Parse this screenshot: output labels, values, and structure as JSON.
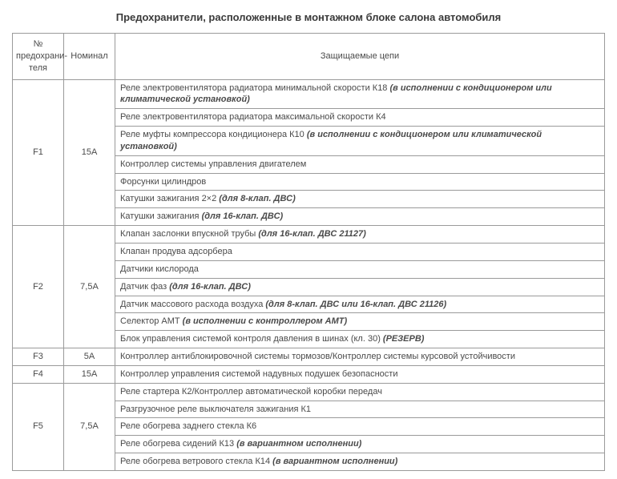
{
  "title": "Предохранители, расположенные в монтажном блоке салона автомобиля",
  "headers": {
    "col1": "№ предохрани­теля",
    "col2": "Номинал",
    "col3": "Защищаемые цепи"
  },
  "groups": [
    {
      "fuse": "F1",
      "nominal": "15А",
      "rows": [
        {
          "plain": "Реле электровентилятора радиатора минимальной скорости К18 ",
          "bold": "(в исполнении с кондиционером или климатической установкой)"
        },
        {
          "plain": "Реле электровентилятора радиатора максимальной скорости К4",
          "bold": ""
        },
        {
          "plain": "Реле муфты компрессора кондиционера К10 ",
          "bold": "(в исполнении с кондиционером или климатической установкой)"
        },
        {
          "plain": "Контроллер системы управления двигателем",
          "bold": ""
        },
        {
          "plain": "Форсунки цилиндров",
          "bold": ""
        },
        {
          "plain": "Катушки зажигания 2×2 ",
          "bold": "(для 8-клап. ДВС)"
        },
        {
          "plain": "Катушки зажигания ",
          "bold": "(для 16-клап. ДВС)"
        }
      ]
    },
    {
      "fuse": "F2",
      "nominal": "7,5А",
      "rows": [
        {
          "plain": "Клапан заслонки впускной трубы ",
          "bold": "(для 16-клап. ДВС 21127)"
        },
        {
          "plain": "Клапан продува адсорбера",
          "bold": ""
        },
        {
          "plain": "Датчики кислорода",
          "bold": ""
        },
        {
          "plain": "Датчик фаз ",
          "bold": "(для 16-клап. ДВС)"
        },
        {
          "plain": "Датчик массового расхода воздуха ",
          "bold": "(для 8-клап. ДВС или 16-клап. ДВС 21126)"
        },
        {
          "plain": "Селектор АМТ ",
          "bold": "(в исполнении с контроллером АМТ)"
        },
        {
          "plain": "Блок управления системой контроля давления в шинах (кл. 30) ",
          "bold": "(РЕЗЕРВ)"
        }
      ]
    },
    {
      "fuse": "F3",
      "nominal": "5А",
      "rows": [
        {
          "plain": "Контроллер антиблокировочной системы тормозов/Контроллер системы курсовой устойчивости",
          "bold": ""
        }
      ]
    },
    {
      "fuse": "F4",
      "nominal": "15А",
      "rows": [
        {
          "plain": "Контроллер управления системой надувных подушек безопасности",
          "bold": ""
        }
      ]
    },
    {
      "fuse": "F5",
      "nominal": "7,5А",
      "rows": [
        {
          "plain": "Реле стартера К2/Контроллер автоматической коробки передач",
          "bold": ""
        },
        {
          "plain": "Разгрузочное реле выключателя зажигания К1",
          "bold": ""
        },
        {
          "plain": "Реле обогрева заднего стекла К6",
          "bold": ""
        },
        {
          "plain": "Реле обогрева сидений К13 ",
          "bold": "(в вариантном исполнении)"
        },
        {
          "plain": "Реле обогрева ветрового стекла К14 ",
          "bold": "(в вариантном исполнении)"
        }
      ]
    }
  ]
}
